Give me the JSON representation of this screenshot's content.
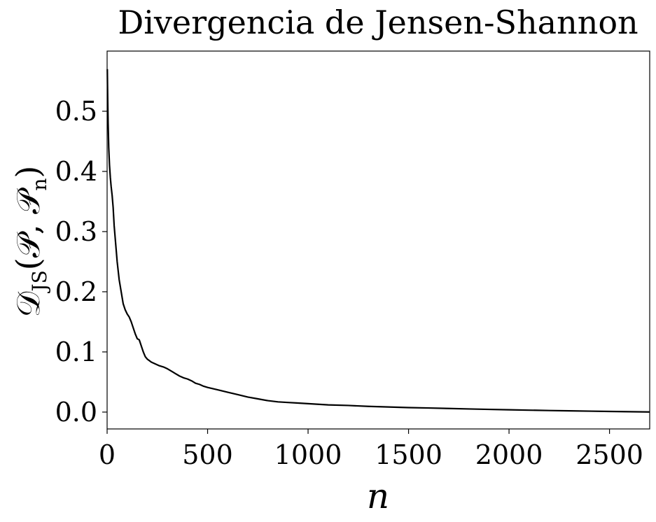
{
  "chart_data": {
    "type": "line",
    "title": "Divergencia de Jensen-Shannon",
    "xlabel": "n",
    "ylabel": {
      "main_left": "𝒟",
      "subscript": "JS",
      "main_right": "(𝒫, 𝒫",
      "subscript2": "n",
      "close": ")"
    },
    "xlim": [
      0,
      2700
    ],
    "ylim": [
      -0.028,
      0.6
    ],
    "xticks": [
      0,
      500,
      1000,
      1500,
      2000,
      2500
    ],
    "yticks": [
      0.0,
      0.1,
      0.2,
      0.3,
      0.4,
      0.5
    ],
    "xtick_labels": [
      "0",
      "500",
      "1000",
      "1500",
      "2000",
      "2500"
    ],
    "ytick_labels": [
      "0.0",
      "0.1",
      "0.2",
      "0.3",
      "0.4",
      "0.5"
    ],
    "grid": false,
    "legend": "none",
    "series": [
      {
        "color": "#000000",
        "x": [
          1,
          3,
          5,
          8,
          12,
          16,
          20,
          25,
          30,
          35,
          40,
          45,
          50,
          55,
          60,
          70,
          80,
          90,
          100,
          110,
          120,
          130,
          140,
          150,
          160,
          170,
          180,
          190,
          200,
          220,
          240,
          260,
          280,
          300,
          320,
          340,
          360,
          380,
          400,
          420,
          440,
          460,
          480,
          500,
          550,
          600,
          650,
          700,
          750,
          800,
          850,
          900,
          950,
          1000,
          1100,
          1200,
          1300,
          1400,
          1500,
          1600,
          1700,
          1800,
          1900,
          2000,
          2100,
          2200,
          2300,
          2400,
          2500,
          2600,
          2700
        ],
        "y": [
          0.57,
          0.52,
          0.48,
          0.44,
          0.41,
          0.39,
          0.375,
          0.36,
          0.34,
          0.31,
          0.29,
          0.27,
          0.25,
          0.235,
          0.22,
          0.2,
          0.18,
          0.17,
          0.163,
          0.158,
          0.15,
          0.14,
          0.13,
          0.122,
          0.12,
          0.11,
          0.1,
          0.092,
          0.088,
          0.083,
          0.08,
          0.077,
          0.075,
          0.072,
          0.068,
          0.064,
          0.06,
          0.057,
          0.055,
          0.052,
          0.048,
          0.046,
          0.043,
          0.041,
          0.037,
          0.033,
          0.029,
          0.025,
          0.022,
          0.019,
          0.017,
          0.016,
          0.015,
          0.014,
          0.012,
          0.011,
          0.0095,
          0.0085,
          0.0075,
          0.0068,
          0.006,
          0.0052,
          0.0045,
          0.0038,
          0.0032,
          0.0026,
          0.0021,
          0.0016,
          0.0011,
          0.0006,
          0.0002
        ]
      }
    ]
  }
}
